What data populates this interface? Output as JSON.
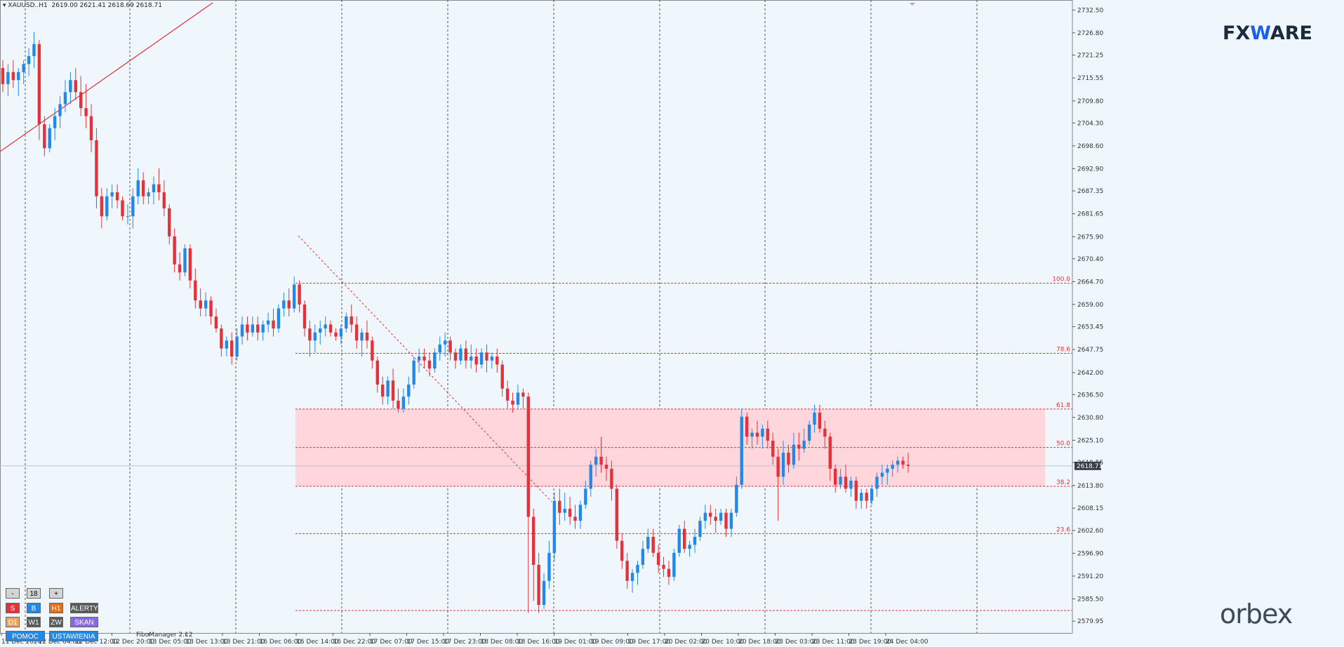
{
  "header": {
    "symbol": "XAUUSD..H1",
    "ohlc": "2619.00 2621.41 2618.69 2618.71"
  },
  "branding": {
    "logo_fx": "FX",
    "logo_w": "W",
    "logo_are": "ARE",
    "orbex": "orbex"
  },
  "fibo_label": "FiboManager 2.12",
  "panel": {
    "minus": "-",
    "count": "18",
    "plus": "+",
    "row1": [
      {
        "label": "S",
        "color": "#e2323c"
      },
      {
        "label": "B",
        "color": "#2488e6"
      },
      {
        "label": "H1",
        "color": "#e0701e"
      },
      {
        "label": "ALERTY",
        "color": "#5a5a5a"
      }
    ],
    "row2": [
      {
        "label": "D1",
        "color": "#f0a060"
      },
      {
        "label": "W1",
        "color": "#5a5a5a"
      },
      {
        "label": "ZW",
        "color": "#5a5a5a"
      },
      {
        "label": "SKAN",
        "color": "#8a6ae0"
      }
    ],
    "row3": [
      {
        "label": "POMOC",
        "color": "#2488e6"
      },
      {
        "label": "USTAWIENIA",
        "color": "#2488e6"
      }
    ]
  },
  "colors": {
    "bull": "#2488e6",
    "bear": "#e2323c",
    "fib": "#e2323c",
    "zone": "#ffd6dc",
    "background": "#eff7fd"
  },
  "chart_data": {
    "type": "candlestick",
    "ylim": [
      2577.0,
      2735.0
    ],
    "y_ticks": [
      "2732.50",
      "2726.80",
      "2721.25",
      "2715.55",
      "2709.80",
      "2704.30",
      "2698.60",
      "2692.90",
      "2687.35",
      "2681.65",
      "2675.90",
      "2670.40",
      "2664.70",
      "2659.00",
      "2653.45",
      "2647.75",
      "2642.00",
      "2636.50",
      "2630.80",
      "2625.10",
      "2619.55",
      "2613.80",
      "2608.15",
      "2602.60",
      "2596.90",
      "2591.20",
      "2585.50",
      "2579.95"
    ],
    "x_ticks": [
      "11 Dec 2024",
      "12 Dec 04:00",
      "12 Dec 12:00",
      "12 Dec 20:00",
      "13 Dec 05:00",
      "13 Dec 13:00",
      "13 Dec 21:00",
      "16 Dec 06:00",
      "16 Dec 14:00",
      "16 Dec 22:00",
      "17 Dec 07:00",
      "17 Dec 15:00",
      "17 Dec 23:00",
      "18 Dec 08:00",
      "18 Dec 16:00",
      "19 Dec 01:00",
      "19 Dec 09:00",
      "19 Dec 17:00",
      "20 Dec 02:00",
      "20 Dec 10:00",
      "20 Dec 18:00",
      "23 Dec 03:00",
      "23 Dec 11:00",
      "23 Dec 19:00",
      "24 Dec 04:00"
    ],
    "current_price": "2618.71",
    "fib_levels": [
      {
        "label": "100.0",
        "price": 2664.3
      },
      {
        "label": "78.6",
        "price": 2646.8
      },
      {
        "label": "61.8",
        "price": 2632.9
      },
      {
        "label": "50.0",
        "price": 2623.3
      },
      {
        "label": "38.2",
        "price": 2613.6
      },
      {
        "label": "23.6",
        "price": 2601.8
      },
      {
        "label": "",
        "price": 2582.6
      }
    ],
    "zone": {
      "top": 2632.9,
      "bottom": 2613.6
    },
    "candles": [
      [
        2718,
        2720,
        2712,
        2714
      ],
      [
        2714,
        2719,
        2711,
        2717
      ],
      [
        2717,
        2720,
        2713,
        2715
      ],
      [
        2715,
        2718,
        2711,
        2717
      ],
      [
        2717,
        2720,
        2714,
        2719
      ],
      [
        2719,
        2723,
        2716,
        2721
      ],
      [
        2721,
        2727,
        2718,
        2724
      ],
      [
        2724,
        2725,
        2700,
        2704
      ],
      [
        2704,
        2706,
        2696,
        2698
      ],
      [
        2698,
        2704,
        2697,
        2703
      ],
      [
        2703,
        2708,
        2700,
        2706
      ],
      [
        2706,
        2711,
        2703,
        2709
      ],
      [
        2709,
        2715,
        2707,
        2712
      ],
      [
        2712,
        2717,
        2709,
        2715
      ],
      [
        2715,
        2718,
        2710,
        2712
      ],
      [
        2712,
        2716,
        2706,
        2708
      ],
      [
        2708,
        2714,
        2703,
        2706
      ],
      [
        2706,
        2709,
        2697,
        2700
      ],
      [
        2700,
        2703,
        2683,
        2686
      ],
      [
        2686,
        2688,
        2678,
        2681
      ],
      [
        2681,
        2688,
        2680,
        2686
      ],
      [
        2686,
        2689,
        2683,
        2687
      ],
      [
        2687,
        2689,
        2683,
        2685
      ],
      [
        2685,
        2686,
        2680,
        2681
      ],
      [
        2681,
        2684,
        2679,
        2681
      ],
      [
        2681,
        2688,
        2678,
        2686
      ],
      [
        2686,
        2693,
        2684,
        2690
      ],
      [
        2690,
        2692,
        2684,
        2686
      ],
      [
        2686,
        2688,
        2684,
        2687
      ],
      [
        2687,
        2691,
        2684,
        2689
      ],
      [
        2689,
        2693,
        2685,
        2687
      ],
      [
        2687,
        2690,
        2681,
        2683
      ],
      [
        2683,
        2684,
        2674,
        2676
      ],
      [
        2676,
        2678,
        2667,
        2669
      ],
      [
        2669,
        2672,
        2665,
        2667
      ],
      [
        2667,
        2674,
        2666,
        2673
      ],
      [
        2673,
        2674,
        2663,
        2665
      ],
      [
        2665,
        2668,
        2658,
        2660
      ],
      [
        2660,
        2663,
        2656,
        2658
      ],
      [
        2658,
        2662,
        2656,
        2660
      ],
      [
        2660,
        2661,
        2654,
        2656
      ],
      [
        2656,
        2658,
        2652,
        2653
      ],
      [
        2653,
        2654,
        2646,
        2648
      ],
      [
        2648,
        2651,
        2646,
        2650
      ],
      [
        2650,
        2652,
        2644,
        2646
      ],
      [
        2646,
        2653,
        2645,
        2651
      ],
      [
        2651,
        2656,
        2649,
        2654
      ],
      [
        2654,
        2656,
        2650,
        2652
      ],
      [
        2652,
        2656,
        2651,
        2654
      ],
      [
        2654,
        2656,
        2650,
        2652
      ],
      [
        2652,
        2655,
        2650,
        2654
      ],
      [
        2654,
        2657,
        2652,
        2655
      ],
      [
        2655,
        2658,
        2651,
        2653
      ],
      [
        2653,
        2659,
        2652,
        2658
      ],
      [
        2658,
        2662,
        2656,
        2660
      ],
      [
        2660,
        2663,
        2656,
        2658
      ],
      [
        2658,
        2666,
        2657,
        2664
      ],
      [
        2664,
        2665,
        2657,
        2659
      ],
      [
        2659,
        2660,
        2651,
        2653
      ],
      [
        2653,
        2655,
        2646,
        2650
      ],
      [
        2650,
        2654,
        2647,
        2652
      ],
      [
        2652,
        2655,
        2649,
        2653
      ],
      [
        2653,
        2656,
        2651,
        2654
      ],
      [
        2654,
        2655,
        2651,
        2652
      ],
      [
        2652,
        2653,
        2650,
        2651
      ],
      [
        2651,
        2654,
        2649,
        2653
      ],
      [
        2653,
        2657,
        2652,
        2656
      ],
      [
        2656,
        2659,
        2652,
        2654
      ],
      [
        2654,
        2656,
        2648,
        2650
      ],
      [
        2650,
        2653,
        2646,
        2652
      ],
      [
        2652,
        2655,
        2648,
        2650
      ],
      [
        2650,
        2651,
        2643,
        2645
      ],
      [
        2645,
        2646,
        2637,
        2639
      ],
      [
        2639,
        2641,
        2634,
        2636
      ],
      [
        2636,
        2641,
        2634,
        2640
      ],
      [
        2640,
        2643,
        2633,
        2635
      ],
      [
        2635,
        2638,
        2632,
        2633
      ],
      [
        2633,
        2638,
        2632,
        2636
      ],
      [
        2636,
        2641,
        2634,
        2639
      ],
      [
        2639,
        2646,
        2638,
        2645
      ],
      [
        2645,
        2648,
        2642,
        2646
      ],
      [
        2646,
        2648,
        2643,
        2645
      ],
      [
        2645,
        2647,
        2641,
        2643
      ],
      [
        2643,
        2648,
        2642,
        2647
      ],
      [
        2647,
        2651,
        2645,
        2649
      ],
      [
        2649,
        2652,
        2646,
        2650
      ],
      [
        2650,
        2651,
        2645,
        2647
      ],
      [
        2647,
        2648,
        2643,
        2645
      ],
      [
        2645,
        2649,
        2644,
        2648
      ],
      [
        2648,
        2650,
        2643,
        2645
      ],
      [
        2645,
        2649,
        2643,
        2646
      ],
      [
        2646,
        2648,
        2642,
        2644
      ],
      [
        2644,
        2648,
        2643,
        2647
      ],
      [
        2647,
        2649,
        2642,
        2645
      ],
      [
        2645,
        2647,
        2643,
        2646
      ],
      [
        2646,
        2648,
        2642,
        2644
      ],
      [
        2644,
        2645,
        2636,
        2638
      ],
      [
        2638,
        2640,
        2633,
        2635
      ],
      [
        2635,
        2637,
        2632,
        2634
      ],
      [
        2634,
        2639,
        2633,
        2637
      ],
      [
        2637,
        2638,
        2633,
        2636
      ],
      [
        2636,
        2637,
        2582,
        2606
      ],
      [
        2606,
        2608,
        2585,
        2594
      ],
      [
        2594,
        2597,
        2582,
        2584
      ],
      [
        2584,
        2592,
        2583,
        2590
      ],
      [
        2590,
        2600,
        2588,
        2597
      ],
      [
        2597,
        2612,
        2595,
        2610
      ],
      [
        2610,
        2613,
        2604,
        2607
      ],
      [
        2607,
        2612,
        2605,
        2608
      ],
      [
        2608,
        2611,
        2604,
        2606
      ],
      [
        2606,
        2609,
        2603,
        2605
      ],
      [
        2605,
        2610,
        2603,
        2609
      ],
      [
        2609,
        2615,
        2608,
        2613
      ],
      [
        2613,
        2620,
        2611,
        2619
      ],
      [
        2619,
        2623,
        2616,
        2621
      ],
      [
        2621,
        2626,
        2617,
        2619
      ],
      [
        2619,
        2621,
        2615,
        2618
      ],
      [
        2618,
        2620,
        2610,
        2613
      ],
      [
        2613,
        2614,
        2598,
        2600
      ],
      [
        2600,
        2602,
        2593,
        2595
      ],
      [
        2595,
        2597,
        2588,
        2590
      ],
      [
        2590,
        2593,
        2587,
        2592
      ],
      [
        2592,
        2595,
        2589,
        2594
      ],
      [
        2594,
        2600,
        2593,
        2598
      ],
      [
        2598,
        2603,
        2597,
        2601
      ],
      [
        2601,
        2603,
        2596,
        2597
      ],
      [
        2597,
        2599,
        2592,
        2594
      ],
      [
        2594,
        2596,
        2591,
        2593
      ],
      [
        2593,
        2595,
        2589,
        2591
      ],
      [
        2591,
        2598,
        2590,
        2597
      ],
      [
        2597,
        2604,
        2596,
        2603
      ],
      [
        2603,
        2605,
        2597,
        2598
      ],
      [
        2598,
        2600,
        2596,
        2599
      ],
      [
        2599,
        2603,
        2597,
        2601
      ],
      [
        2601,
        2606,
        2600,
        2605
      ],
      [
        2605,
        2609,
        2603,
        2607
      ],
      [
        2607,
        2609,
        2604,
        2606
      ],
      [
        2606,
        2608,
        2602,
        2605
      ],
      [
        2605,
        2608,
        2604,
        2607
      ],
      [
        2607,
        2608,
        2601,
        2603
      ],
      [
        2603,
        2608,
        2601,
        2607
      ],
      [
        2607,
        2616,
        2606,
        2614
      ],
      [
        2614,
        2633,
        2613,
        2631
      ],
      [
        2631,
        2632,
        2624,
        2626
      ],
      [
        2626,
        2628,
        2623,
        2627
      ],
      [
        2627,
        2630,
        2624,
        2626
      ],
      [
        2626,
        2629,
        2623,
        2628
      ],
      [
        2628,
        2630,
        2623,
        2625
      ],
      [
        2625,
        2627,
        2619,
        2621
      ],
      [
        2621,
        2623,
        2605,
        2616
      ],
      [
        2616,
        2625,
        2614,
        2622
      ],
      [
        2622,
        2624,
        2617,
        2619
      ],
      [
        2619,
        2627,
        2618,
        2624
      ],
      [
        2624,
        2627,
        2620,
        2623
      ],
      [
        2623,
        2628,
        2622,
        2625
      ],
      [
        2625,
        2630,
        2624,
        2629
      ],
      [
        2629,
        2634,
        2627,
        2632
      ],
      [
        2632,
        2634,
        2627,
        2628
      ],
      [
        2628,
        2630,
        2623,
        2626
      ],
      [
        2626,
        2627,
        2615,
        2618
      ],
      [
        2618,
        2619,
        2612,
        2614
      ],
      [
        2614,
        2618,
        2613,
        2616
      ],
      [
        2616,
        2619,
        2612,
        2613
      ],
      [
        2613,
        2616,
        2611,
        2615
      ],
      [
        2615,
        2616,
        2608,
        2610
      ],
      [
        2610,
        2613,
        2608,
        2612
      ],
      [
        2612,
        2613,
        2608,
        2610
      ],
      [
        2610,
        2614,
        2609,
        2613
      ],
      [
        2613,
        2617,
        2611,
        2616
      ],
      [
        2616,
        2619,
        2614,
        2617
      ],
      [
        2617,
        2619,
        2614,
        2618
      ],
      [
        2618,
        2620,
        2616,
        2619
      ],
      [
        2619,
        2621,
        2617,
        2620
      ],
      [
        2620,
        2621,
        2618,
        2619
      ],
      [
        2619,
        2622,
        2617,
        2618.71
      ]
    ]
  }
}
